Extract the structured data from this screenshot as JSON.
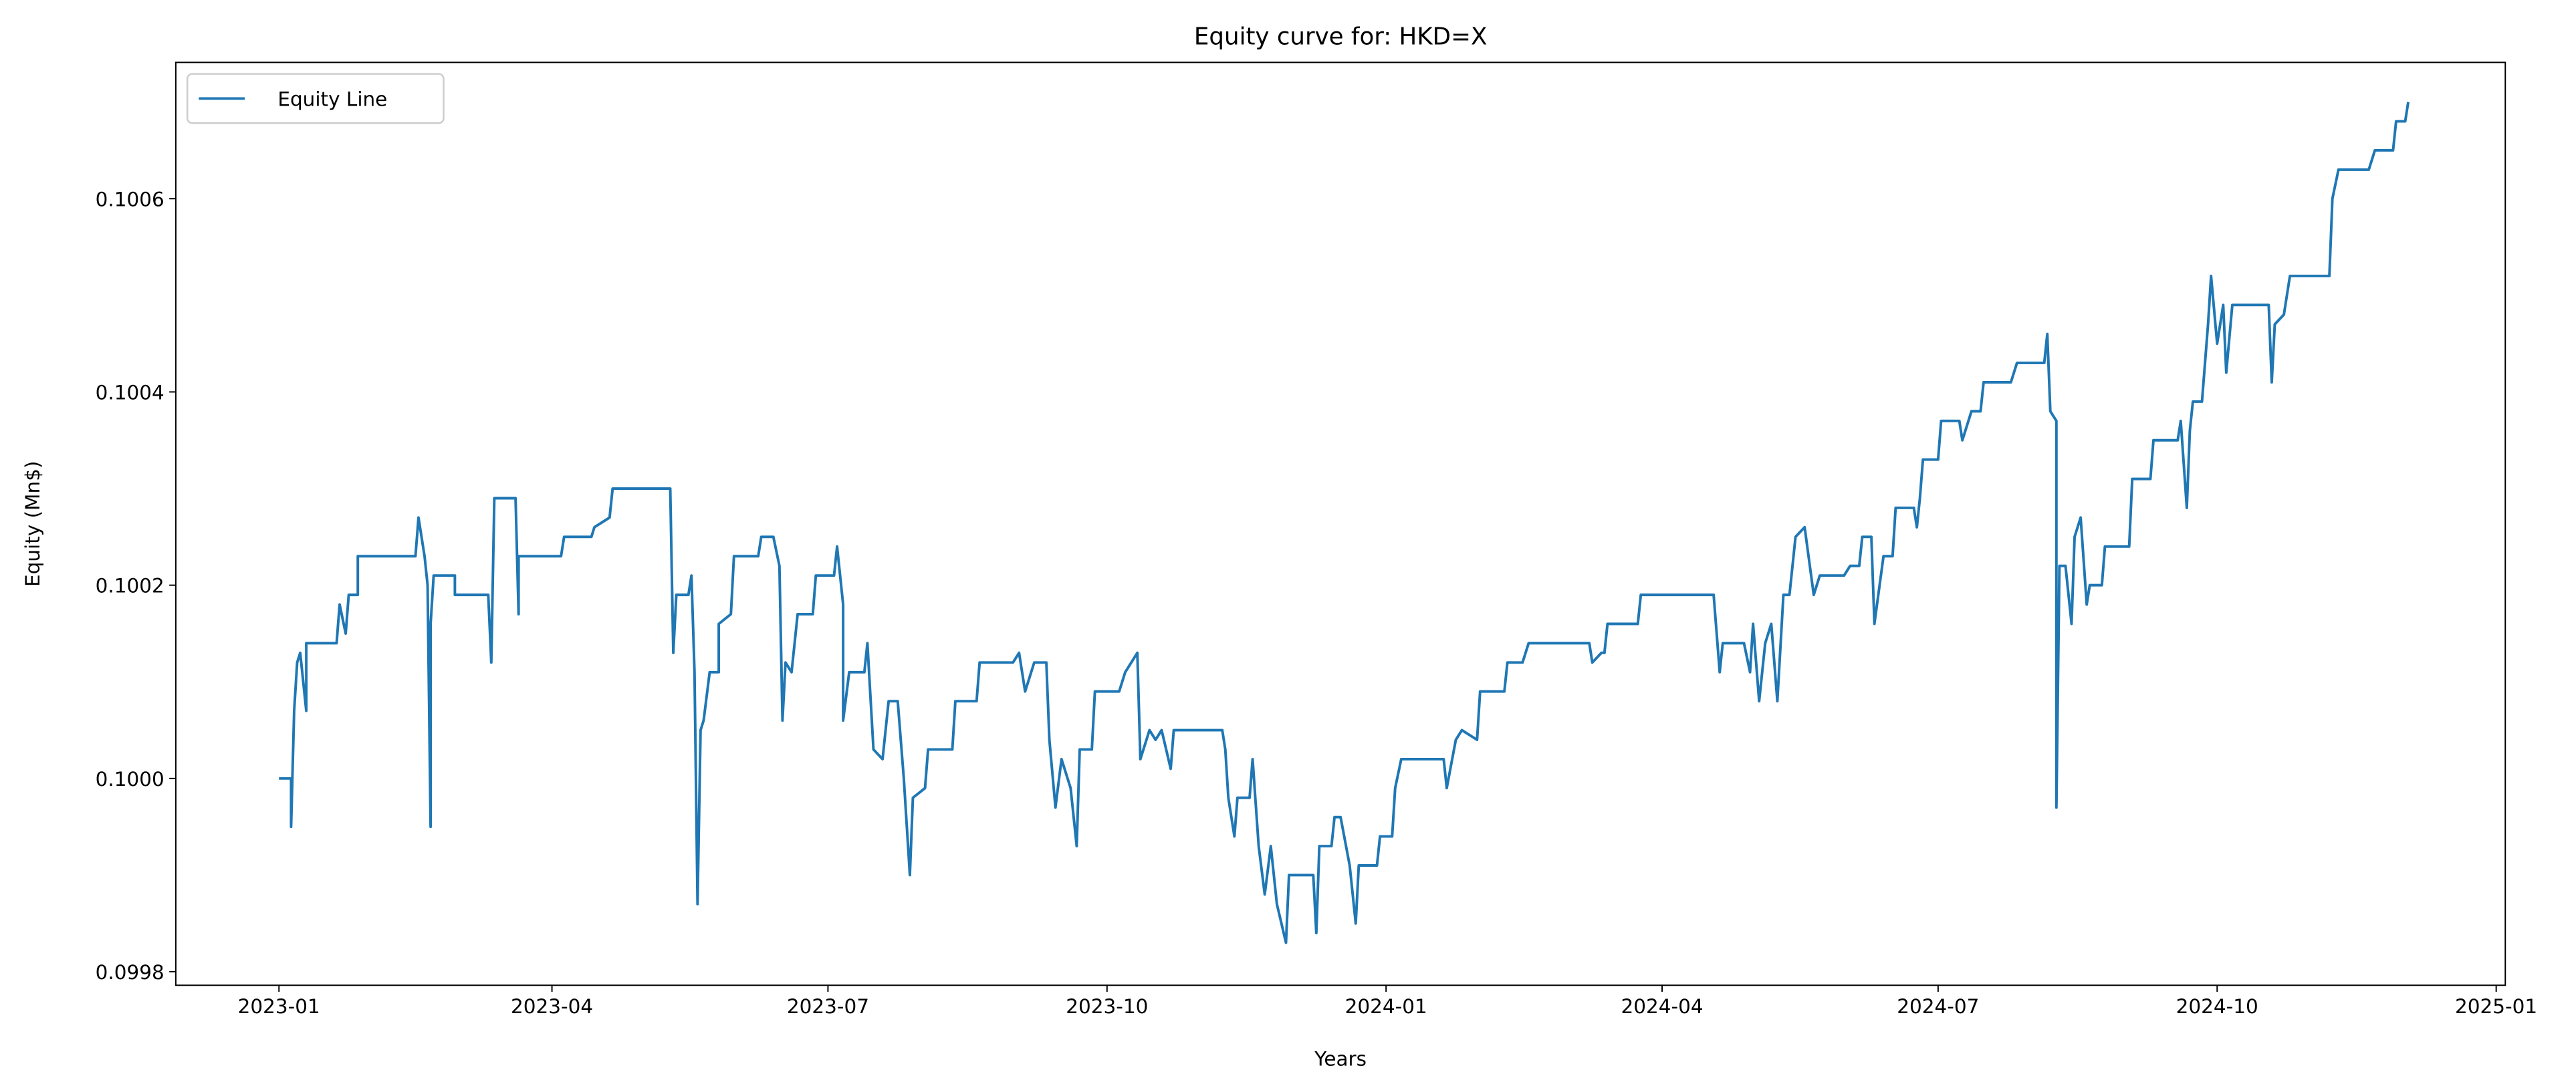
{
  "chart_data": {
    "type": "line",
    "title": "Equity curve for: HKD=X",
    "x_label": "Years",
    "y_label": "Equity (Mn$)",
    "x": [
      "2023-01-01",
      "2023-01-05",
      "2023-01-05",
      "2023-01-06",
      "2023-01-07",
      "2023-01-08",
      "2023-01-10",
      "2023-01-10",
      "2023-01-20",
      "2023-01-21",
      "2023-01-23",
      "2023-01-24",
      "2023-01-27",
      "2023-01-27",
      "2023-02-15",
      "2023-02-16",
      "2023-02-18",
      "2023-02-19",
      "2023-02-20",
      "2023-02-20",
      "2023-02-21",
      "2023-02-28",
      "2023-02-28",
      "2023-03-11",
      "2023-03-12",
      "2023-03-13",
      "2023-03-20",
      "2023-03-21",
      "2023-03-21",
      "2023-04-04",
      "2023-04-05",
      "2023-04-14",
      "2023-04-15",
      "2023-04-20",
      "2023-04-21",
      "2023-04-22",
      "2023-04-24",
      "2023-05-04",
      "2023-05-10",
      "2023-05-11",
      "2023-05-12",
      "2023-05-16",
      "2023-05-17",
      "2023-05-18",
      "2023-05-19",
      "2023-05-20",
      "2023-05-21",
      "2023-05-23",
      "2023-05-26",
      "2023-05-26",
      "2023-05-30",
      "2023-05-31",
      "2023-06-08",
      "2023-06-09",
      "2023-06-13",
      "2023-06-15",
      "2023-06-16",
      "2023-06-17",
      "2023-06-19",
      "2023-06-21",
      "2023-06-26",
      "2023-06-27",
      "2023-07-03",
      "2023-07-04",
      "2023-07-06",
      "2023-07-06",
      "2023-07-08",
      "2023-07-13",
      "2023-07-14",
      "2023-07-16",
      "2023-07-19",
      "2023-07-21",
      "2023-07-24",
      "2023-07-26",
      "2023-07-28",
      "2023-07-29",
      "2023-08-02",
      "2023-08-03",
      "2023-08-11",
      "2023-08-12",
      "2023-08-19",
      "2023-08-20",
      "2023-08-31",
      "2023-09-02",
      "2023-09-04",
      "2023-09-07",
      "2023-09-11",
      "2023-09-12",
      "2023-09-14",
      "2023-09-16",
      "2023-09-19",
      "2023-09-21",
      "2023-09-22",
      "2023-09-26",
      "2023-09-27",
      "2023-10-05",
      "2023-10-07",
      "2023-10-11",
      "2023-10-12",
      "2023-10-15",
      "2023-10-17",
      "2023-10-19",
      "2023-10-22",
      "2023-10-23",
      "2023-11-08",
      "2023-11-09",
      "2023-11-10",
      "2023-11-12",
      "2023-11-13",
      "2023-11-17",
      "2023-11-18",
      "2023-11-20",
      "2023-11-22",
      "2023-11-24",
      "2023-11-26",
      "2023-11-29",
      "2023-11-30",
      "2023-12-08",
      "2023-12-09",
      "2023-12-10",
      "2023-12-14",
      "2023-12-15",
      "2023-12-17",
      "2023-12-20",
      "2023-12-22",
      "2023-12-23",
      "2023-12-29",
      "2023-12-30",
      "2024-01-03",
      "2024-01-04",
      "2024-01-06",
      "2024-01-20",
      "2024-01-21",
      "2024-01-24",
      "2024-01-26",
      "2024-01-31",
      "2024-02-01",
      "2024-02-09",
      "2024-02-10",
      "2024-02-15",
      "2024-02-17",
      "2024-03-08",
      "2024-03-09",
      "2024-03-12",
      "2024-03-13",
      "2024-03-14",
      "2024-03-24",
      "2024-03-25",
      "2024-04-18",
      "2024-04-20",
      "2024-04-21",
      "2024-04-28",
      "2024-04-30",
      "2024-05-01",
      "2024-05-03",
      "2024-05-05",
      "2024-05-07",
      "2024-05-09",
      "2024-05-11",
      "2024-05-13",
      "2024-05-15",
      "2024-05-18",
      "2024-05-21",
      "2024-05-23",
      "2024-05-31",
      "2024-06-02",
      "2024-06-05",
      "2024-06-06",
      "2024-06-09",
      "2024-06-10",
      "2024-06-13",
      "2024-06-16",
      "2024-06-17",
      "2024-06-23",
      "2024-06-24",
      "2024-06-25",
      "2024-06-26",
      "2024-07-01",
      "2024-07-02",
      "2024-07-08",
      "2024-07-09",
      "2024-07-12",
      "2024-07-15",
      "2024-07-16",
      "2024-07-25",
      "2024-07-27",
      "2024-08-05",
      "2024-08-06",
      "2024-08-07",
      "2024-08-09",
      "2024-08-09",
      "2024-08-10",
      "2024-08-12",
      "2024-08-14",
      "2024-08-15",
      "2024-08-17",
      "2024-08-19",
      "2024-08-20",
      "2024-08-24",
      "2024-08-25",
      "2024-09-02",
      "2024-09-03",
      "2024-09-09",
      "2024-09-10",
      "2024-09-18",
      "2024-09-19",
      "2024-09-21",
      "2024-09-22",
      "2024-09-23",
      "2024-09-26",
      "2024-09-28",
      "2024-09-29",
      "2024-10-01",
      "2024-10-03",
      "2024-10-04",
      "2024-10-06",
      "2024-10-18",
      "2024-10-19",
      "2024-10-20",
      "2024-10-23",
      "2024-10-25",
      "2024-11-07",
      "2024-11-08",
      "2024-11-10",
      "2024-11-20",
      "2024-11-22",
      "2024-11-28",
      "2024-11-29",
      "2024-12-02",
      "2024-12-03"
    ],
    "series": [
      {
        "name": "Equity Line",
        "color": "#1f77b4",
        "values": [
          0.1,
          0.1,
          0.09995,
          0.10007,
          0.10012,
          0.10013,
          0.10007,
          0.10014,
          0.10014,
          0.10018,
          0.10015,
          0.10019,
          0.10019,
          0.10023,
          0.10023,
          0.10027,
          0.10023,
          0.1002,
          0.09995,
          0.10016,
          0.10021,
          0.10021,
          0.10019,
          0.10019,
          0.10012,
          0.10029,
          0.10029,
          0.10017,
          0.10023,
          0.10023,
          0.10025,
          0.10025,
          0.10026,
          0.10027,
          0.1003,
          0.1003,
          0.1003,
          0.1003,
          0.1003,
          0.10013,
          0.10019,
          0.10019,
          0.10021,
          0.10011,
          0.09987,
          0.10005,
          0.10006,
          0.10011,
          0.10011,
          0.10016,
          0.10017,
          0.10023,
          0.10023,
          0.10025,
          0.10025,
          0.10022,
          0.10006,
          0.10012,
          0.10011,
          0.10017,
          0.10017,
          0.10021,
          0.10021,
          0.10024,
          0.10018,
          0.10006,
          0.10011,
          0.10011,
          0.10014,
          0.10003,
          0.10002,
          0.10008,
          0.10008,
          0.1,
          0.0999,
          0.09998,
          0.09999,
          0.10003,
          0.10003,
          0.10008,
          0.10008,
          0.10012,
          0.10012,
          0.10013,
          0.10009,
          0.10012,
          0.10012,
          0.10004,
          0.09997,
          0.10002,
          0.09999,
          0.09993,
          0.10003,
          0.10003,
          0.10009,
          0.10009,
          0.10011,
          0.10013,
          0.10002,
          0.10005,
          0.10004,
          0.10005,
          0.10001,
          0.10005,
          0.10005,
          0.10003,
          0.09998,
          0.09994,
          0.09998,
          0.09998,
          0.10002,
          0.09993,
          0.09988,
          0.09993,
          0.09987,
          0.09983,
          0.0999,
          0.0999,
          0.09984,
          0.09993,
          0.09993,
          0.09996,
          0.09996,
          0.09991,
          0.09985,
          0.09991,
          0.09991,
          0.09994,
          0.09994,
          0.09999,
          0.10002,
          0.10002,
          0.09999,
          0.10004,
          0.10005,
          0.10004,
          0.10009,
          0.10009,
          0.10012,
          0.10012,
          0.10014,
          0.10014,
          0.10012,
          0.10013,
          0.10013,
          0.10016,
          0.10016,
          0.10019,
          0.10019,
          0.10011,
          0.10014,
          0.10014,
          0.10011,
          0.10016,
          0.10008,
          0.10014,
          0.10016,
          0.10008,
          0.10019,
          0.10019,
          0.10025,
          0.10026,
          0.10019,
          0.10021,
          0.10021,
          0.10022,
          0.10022,
          0.10025,
          0.10025,
          0.10016,
          0.10023,
          0.10023,
          0.10028,
          0.10028,
          0.10026,
          0.10029,
          0.10033,
          0.10033,
          0.10037,
          0.10037,
          0.10035,
          0.10038,
          0.10038,
          0.10041,
          0.10041,
          0.10043,
          0.10043,
          0.10046,
          0.10038,
          0.10037,
          0.09997,
          0.10022,
          0.10022,
          0.10016,
          0.10025,
          0.10027,
          0.10018,
          0.1002,
          0.1002,
          0.10024,
          0.10024,
          0.10031,
          0.10031,
          0.10035,
          0.10035,
          0.10037,
          0.10028,
          0.10036,
          0.10039,
          0.10039,
          0.10047,
          0.10052,
          0.10045,
          0.10049,
          0.10042,
          0.10049,
          0.10049,
          0.10041,
          0.10047,
          0.10048,
          0.10052,
          0.10052,
          0.1006,
          0.10063,
          0.10063,
          0.10065,
          0.10065,
          0.10068,
          0.10068,
          0.1007
        ]
      }
    ],
    "xlim": [
      "2022-11-28",
      "2025-01-04"
    ],
    "xticks": [
      {
        "value": "2023-01-01",
        "label": "2023-01"
      },
      {
        "value": "2023-04-01",
        "label": "2023-04"
      },
      {
        "value": "2023-07-01",
        "label": "2023-07"
      },
      {
        "value": "2023-10-01",
        "label": "2023-10"
      },
      {
        "value": "2024-01-01",
        "label": "2024-01"
      },
      {
        "value": "2024-04-01",
        "label": "2024-04"
      },
      {
        "value": "2024-07-01",
        "label": "2024-07"
      },
      {
        "value": "2024-10-01",
        "label": "2024-10"
      },
      {
        "value": "2025-01-01",
        "label": "2025-01"
      }
    ],
    "ylim": [
      0.099786,
      0.100741
    ],
    "yticks": [
      0.0998,
      {
        "value": 0.1,
        "label": "0.1000"
      },
      0.1002,
      0.1004,
      0.1006
    ],
    "grid": false,
    "legend": "upper left"
  }
}
